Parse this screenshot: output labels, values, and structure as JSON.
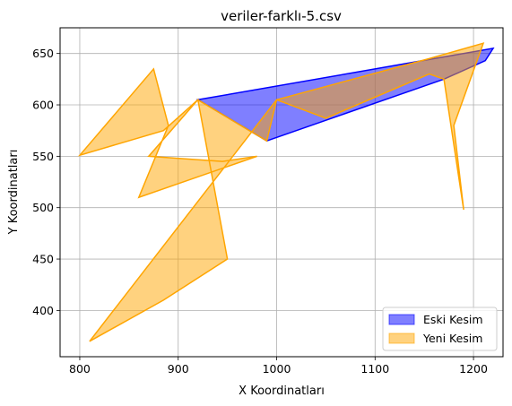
{
  "chart_data": {
    "type": "area",
    "title": "veriler-farklı-5.csv",
    "xlabel": "X Koordinatları",
    "ylabel": "Y Koordinatları",
    "xlim": [
      780,
      1230
    ],
    "ylim": [
      355,
      675
    ],
    "xticks": [
      800,
      900,
      1000,
      1100,
      1200
    ],
    "yticks": [
      400,
      450,
      500,
      550,
      600,
      650
    ],
    "grid": true,
    "legend_position": "lower-right",
    "series": [
      {
        "name": "Eski Kesim",
        "fill_color": "#0000ff",
        "edge_color": "#0000ff",
        "fill_alpha": 0.5,
        "points": [
          {
            "x": 920,
            "y": 605
          },
          {
            "x": 1160,
            "y": 645
          },
          {
            "x": 1220,
            "y": 655
          },
          {
            "x": 1212,
            "y": 643
          },
          {
            "x": 1170,
            "y": 625
          },
          {
            "x": 990,
            "y": 565
          }
        ]
      },
      {
        "name": "Yeni Kesim",
        "fill_color": "#ffa500",
        "edge_color": "#ffa500",
        "fill_alpha": 0.5,
        "points": [
          {
            "x": 800,
            "y": 551
          },
          {
            "x": 875,
            "y": 635
          },
          {
            "x": 890,
            "y": 580
          },
          {
            "x": 860,
            "y": 510
          },
          {
            "x": 980,
            "y": 550
          },
          {
            "x": 945,
            "y": 545
          },
          {
            "x": 870,
            "y": 550
          },
          {
            "x": 920,
            "y": 605
          },
          {
            "x": 950,
            "y": 450
          },
          {
            "x": 885,
            "y": 410
          },
          {
            "x": 810,
            "y": 370
          },
          {
            "x": 1000,
            "y": 605
          },
          {
            "x": 1050,
            "y": 587
          },
          {
            "x": 1155,
            "y": 630
          },
          {
            "x": 1170,
            "y": 625
          },
          {
            "x": 1190,
            "y": 498
          },
          {
            "x": 1180,
            "y": 580
          },
          {
            "x": 1210,
            "y": 660
          },
          {
            "x": 1155,
            "y": 645
          },
          {
            "x": 1000,
            "y": 605
          },
          {
            "x": 990,
            "y": 565
          },
          {
            "x": 920,
            "y": 605
          },
          {
            "x": 885,
            "y": 575
          },
          {
            "x": 800,
            "y": 551
          }
        ]
      }
    ]
  }
}
